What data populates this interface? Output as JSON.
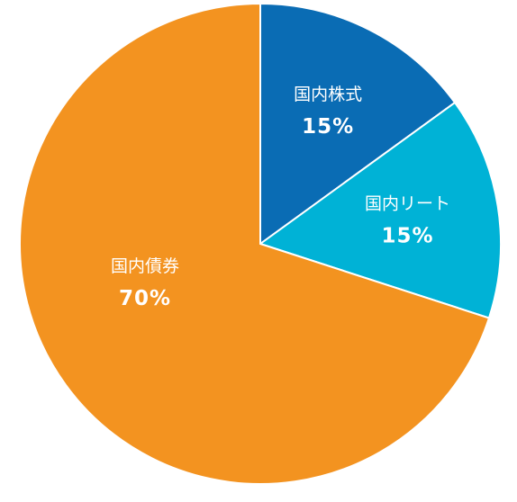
{
  "chart_data": {
    "type": "pie",
    "categories": [
      "国内株式",
      "国内リート",
      "国内債券"
    ],
    "values": [
      15,
      15,
      70
    ],
    "value_labels": [
      "15%",
      "15%",
      "70%"
    ],
    "colors": [
      "#0a6cb4",
      "#00b2d6",
      "#f39320"
    ]
  }
}
